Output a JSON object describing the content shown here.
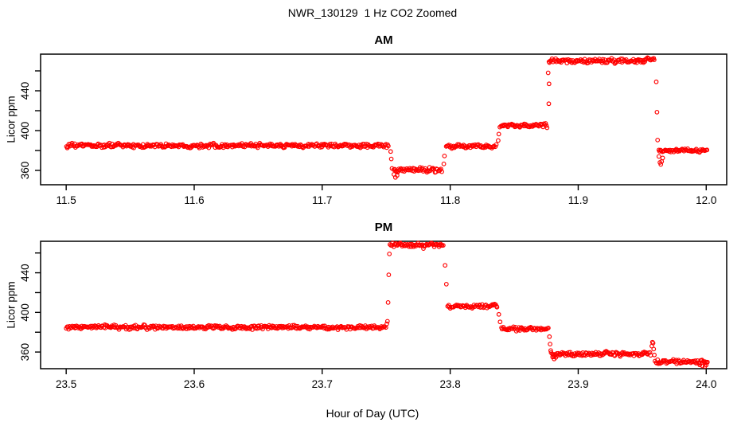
{
  "figure": {
    "main_title": "NWR_130129  1 Hz CO2 Zoomed",
    "x_axis_label": "Hour of Day (UTC)",
    "background_color": "#FFFFFF",
    "axis_color": "#000000",
    "point_color": "#FF0000"
  },
  "chart_data": [
    {
      "type": "scatter",
      "panel_title": "AM",
      "ylabel": "Licor ppm",
      "marker": "open-circle",
      "color": "#FF0000",
      "grid": false,
      "legend": "none",
      "xlim": [
        11.48,
        12.016
      ],
      "ylim": [
        345.6,
        476.8
      ],
      "x_tick_values": [
        11.5,
        11.6,
        11.7,
        11.8,
        11.9,
        12.0
      ],
      "x_tick_labels": [
        "11.5",
        "11.6",
        "11.7",
        "11.8",
        "11.9",
        "12.0"
      ],
      "y_tick_values": [
        360,
        380,
        400,
        420,
        440,
        460
      ],
      "y_tick_labels": [
        "360",
        "",
        "400",
        "",
        "440",
        ""
      ],
      "segments": [
        {
          "x0": 11.5,
          "x1": 11.752,
          "y": 385.0,
          "noise": 1.2
        },
        {
          "x0": 11.756,
          "x1": 11.794,
          "y": 360.5,
          "noise": 1.4
        },
        {
          "x0": 11.797,
          "x1": 11.836,
          "y": 384.0,
          "noise": 1.2
        },
        {
          "x0": 11.839,
          "x1": 11.876,
          "y": 405.0,
          "noise": 1.2
        },
        {
          "x0": 11.877,
          "x1": 11.952,
          "y": 470.0,
          "noise": 1.3
        },
        {
          "x0": 11.952,
          "x1": 11.96,
          "y": 472.0,
          "noise": 1.2
        },
        {
          "x0": 11.963,
          "x1": 12.001,
          "y": 380.0,
          "noise": 1.2
        }
      ],
      "transition_points": [
        [
          11.7535,
          379.0
        ],
        [
          11.754,
          371.5
        ],
        [
          11.7545,
          362.0
        ],
        [
          11.756,
          356.0
        ],
        [
          11.7572,
          353.0
        ],
        [
          11.7585,
          355.0
        ],
        [
          11.795,
          366.5
        ],
        [
          11.7955,
          374.5
        ],
        [
          11.8375,
          390.0
        ],
        [
          11.838,
          396.5
        ],
        [
          11.8765,
          458.0
        ],
        [
          11.877,
          427.0
        ],
        [
          11.8772,
          447.0
        ],
        [
          11.961,
          449.0
        ],
        [
          11.9615,
          418.5
        ],
        [
          11.962,
          390.5
        ],
        [
          11.963,
          374.0
        ],
        [
          11.9638,
          368.0
        ],
        [
          11.9645,
          366.0
        ],
        [
          11.9652,
          369.0
        ],
        [
          11.966,
          372.5
        ]
      ]
    },
    {
      "type": "scatter",
      "panel_title": "PM",
      "ylabel": "Licor ppm",
      "marker": "open-circle",
      "color": "#FF0000",
      "grid": false,
      "legend": "none",
      "xlim": [
        23.48,
        24.016
      ],
      "ylim": [
        343.2,
        471.8
      ],
      "x_tick_values": [
        23.5,
        23.6,
        23.7,
        23.8,
        23.9,
        24.0
      ],
      "x_tick_labels": [
        "23.5",
        "23.6",
        "23.7",
        "23.8",
        "23.9",
        "24.0"
      ],
      "y_tick_values": [
        360,
        380,
        400,
        420,
        440,
        460
      ],
      "y_tick_labels": [
        "360",
        "",
        "400",
        "",
        "440",
        ""
      ],
      "segments": [
        {
          "x0": 23.5,
          "x1": 23.75,
          "y": 385.0,
          "noise": 1.2
        },
        {
          "x0": 23.753,
          "x1": 23.795,
          "y": 468.0,
          "noise": 1.3
        },
        {
          "x0": 23.798,
          "x1": 23.837,
          "y": 406.0,
          "noise": 1.2
        },
        {
          "x0": 23.84,
          "x1": 23.877,
          "y": 383.5,
          "noise": 1.2
        },
        {
          "x0": 23.879,
          "x1": 23.957,
          "y": 358.0,
          "noise": 1.4
        },
        {
          "x0": 23.96,
          "x1": 24.001,
          "y": 350.5,
          "noise": 1.2
        }
      ],
      "transition_points": [
        [
          23.7505,
          388.5
        ],
        [
          23.751,
          391.0
        ],
        [
          23.7515,
          410.0
        ],
        [
          23.752,
          438.0
        ],
        [
          23.7525,
          459.0
        ],
        [
          23.796,
          447.5
        ],
        [
          23.797,
          428.5
        ],
        [
          23.838,
          398.0
        ],
        [
          23.839,
          390.5
        ],
        [
          23.8775,
          375.5
        ],
        [
          23.878,
          368.0
        ],
        [
          23.8785,
          361.5
        ],
        [
          23.88,
          355.0
        ],
        [
          23.8812,
          353.0
        ],
        [
          23.8825,
          354.5
        ],
        [
          23.9575,
          366.0
        ],
        [
          23.958,
          370.0
        ],
        [
          23.9585,
          369.0
        ],
        [
          23.959,
          363.0
        ],
        [
          23.9595,
          357.0
        ],
        [
          23.995,
          347.0
        ],
        [
          23.997,
          346.0
        ],
        [
          23.999,
          345.5
        ],
        [
          24.0,
          347.0
        ]
      ]
    }
  ]
}
